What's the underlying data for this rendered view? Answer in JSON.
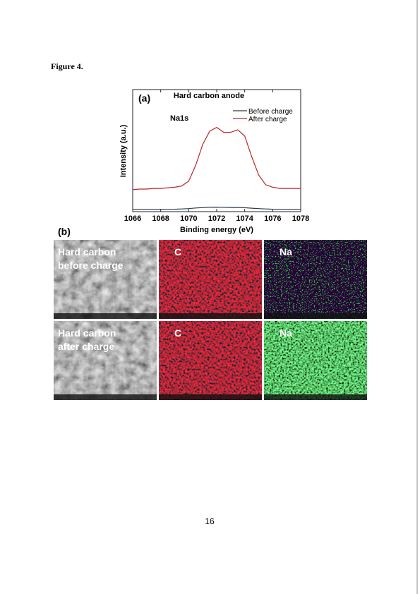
{
  "heading": "Figure 4.",
  "chart_data": {
    "type": "line",
    "panel_label": "(a)",
    "title": "Hard carbon anode",
    "annotation": "Na1s",
    "x_label": "Binding energy (eV)",
    "y_label": "Intensity (a.u.)",
    "x": [
      1066,
      1066.5,
      1067,
      1067.5,
      1068,
      1068.5,
      1069,
      1069.5,
      1070,
      1070.5,
      1071,
      1071.5,
      1072,
      1072.5,
      1073,
      1073.5,
      1074,
      1074.5,
      1075,
      1075.5,
      1076,
      1076.5,
      1077,
      1077.5,
      1078
    ],
    "series": [
      {
        "name": "Before charge",
        "color": "#2b3a4c",
        "values": [
          0.02,
          0.02,
          0.02,
          0.02,
          0.02,
          0.02,
          0.02,
          0.022,
          0.025,
          0.03,
          0.033,
          0.036,
          0.037,
          0.035,
          0.034,
          0.034,
          0.032,
          0.028,
          0.025,
          0.022,
          0.02,
          0.02,
          0.02,
          0.02,
          0.02
        ]
      },
      {
        "name": "After charge",
        "color": "#b8282a",
        "values": [
          0.18,
          0.185,
          0.185,
          0.19,
          0.19,
          0.195,
          0.2,
          0.21,
          0.25,
          0.38,
          0.55,
          0.66,
          0.69,
          0.65,
          0.65,
          0.67,
          0.62,
          0.45,
          0.3,
          0.22,
          0.2,
          0.19,
          0.19,
          0.19,
          0.19
        ]
      }
    ],
    "xlim": [
      1066,
      1078
    ],
    "ylim": [
      0,
      1
    ],
    "xticks": [
      1066,
      1068,
      1070,
      1072,
      1074,
      1076,
      1078
    ],
    "legend": "upper right"
  },
  "panel_b": {
    "label": "(b)",
    "tiles": [
      {
        "lines": [
          "Hard carbon",
          "before charge"
        ],
        "kind": "sem"
      },
      {
        "lines": [
          "C"
        ],
        "kind": "carbon"
      },
      {
        "lines": [
          "Na"
        ],
        "kind": "sodium-low"
      },
      {
        "lines": [
          "Hard carbon",
          "after charge"
        ],
        "kind": "sem"
      },
      {
        "lines": [
          "C"
        ],
        "kind": "carbon"
      },
      {
        "lines": [
          "Na"
        ],
        "kind": "sodium-high"
      }
    ]
  },
  "page_number": "16"
}
